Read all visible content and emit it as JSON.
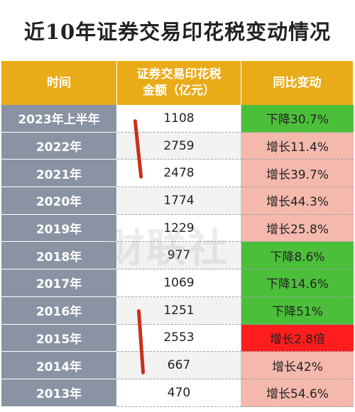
{
  "title": "近10年证券交易印花税变动情况",
  "headers": {
    "time": "时间",
    "amount_line1": "证券交易印花税",
    "amount_line2": "金额（亿元）",
    "change": "同比变动"
  },
  "rows": [
    {
      "year": "2023年上半年",
      "amount": "1108",
      "change": "下降30.7%",
      "trend": "down"
    },
    {
      "year": "2022年",
      "amount": "2759",
      "change": "增长11.4%",
      "trend": "up"
    },
    {
      "year": "2021年",
      "amount": "2478",
      "change": "增长39.7%",
      "trend": "up"
    },
    {
      "year": "2020年",
      "amount": "1774",
      "change": "增长44.3%",
      "trend": "up"
    },
    {
      "year": "2019年",
      "amount": "1229",
      "change": "增长25.8%",
      "trend": "up"
    },
    {
      "year": "2018年",
      "amount": "977",
      "change": "下降8.6%",
      "trend": "down"
    },
    {
      "year": "2017年",
      "amount": "1069",
      "change": "下降14.6%",
      "trend": "down"
    },
    {
      "year": "2016年",
      "amount": "1251",
      "change": "下降51%",
      "trend": "down"
    },
    {
      "year": "2015年",
      "amount": "2553",
      "change": "增长2.8倍",
      "trend": "hot"
    },
    {
      "year": "2014年",
      "amount": "667",
      "change": "增长42%",
      "trend": "up"
    },
    {
      "year": "2013年",
      "amount": "470",
      "change": "增长54.6%",
      "trend": "up"
    }
  ],
  "colors": {
    "header": "#e9ab18",
    "year_cell": "#8a93a3",
    "down": "#4cbf3a",
    "up": "#f4b8ad",
    "hot": "#ff1e1e",
    "marker": "#c9301d"
  },
  "watermark": "财联社"
}
